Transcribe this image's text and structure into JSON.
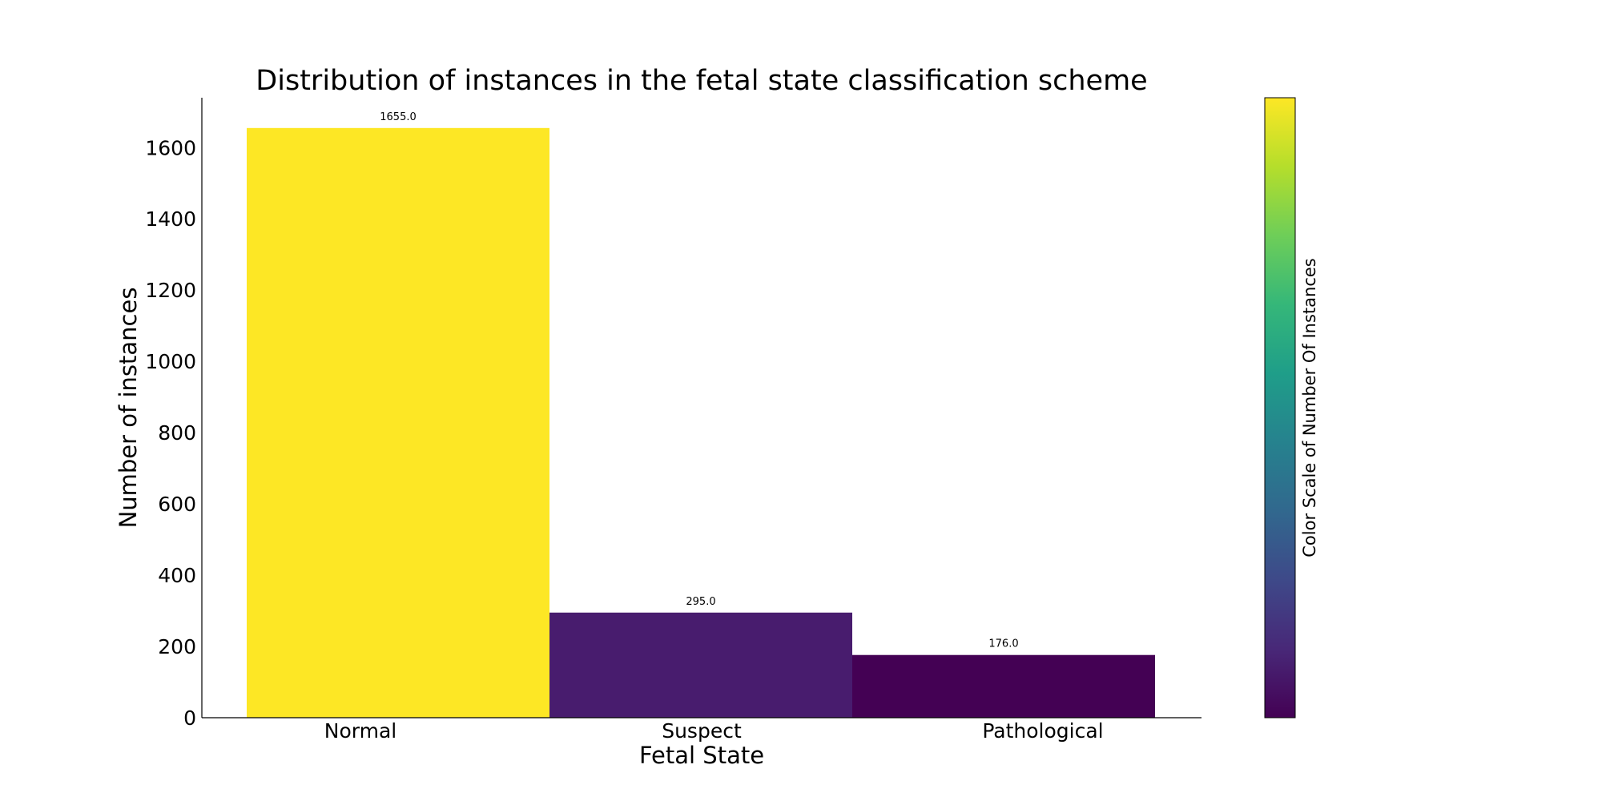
{
  "chart_data": {
    "type": "bar",
    "title": "Distribution of instances in the fetal state classification scheme",
    "xlabel": "Fetal State",
    "ylabel": "Number of instances",
    "categories": [
      "Normal",
      "Suspect",
      "Pathological"
    ],
    "values": [
      1655.0,
      295.0,
      176.0
    ],
    "data_labels": [
      "1655.0",
      "295.0",
      "176.0"
    ],
    "bar_colors": [
      "#fde725",
      "#481c6e",
      "#440154"
    ],
    "ylim": [
      0,
      1740
    ],
    "yticks": [
      0,
      200,
      400,
      600,
      800,
      1000,
      1200,
      1400,
      1600
    ],
    "ytick_labels": [
      "0",
      "200",
      "400",
      "600",
      "800",
      "1000",
      "1200",
      "1400",
      "1600"
    ],
    "grid": false,
    "colorbar": {
      "label": "Color Scale of Number Of Instances",
      "colormap": "viridis",
      "colors": [
        "#440154",
        "#482878",
        "#3e4989",
        "#31688e",
        "#26828e",
        "#1f9e89",
        "#35b779",
        "#6ece58",
        "#b5de2b",
        "#fde725"
      ]
    }
  }
}
